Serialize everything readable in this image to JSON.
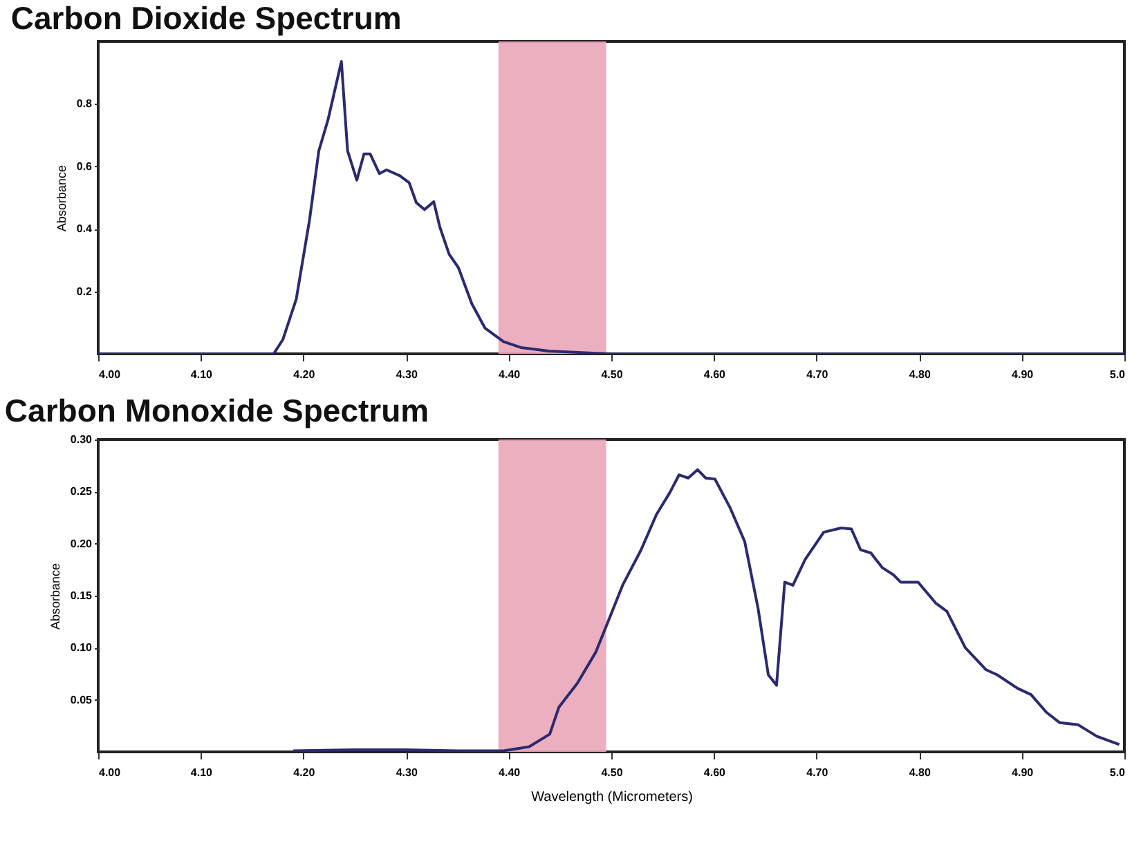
{
  "chart_data": [
    {
      "type": "line",
      "title": "Carbon Dioxide Spectrum",
      "ylabel": "Absorbance",
      "xlim": [
        4.0,
        5.0
      ],
      "ylim": [
        0,
        1.0
      ],
      "xticks": [
        {
          "value": 4.0,
          "label": "4.00"
        },
        {
          "value": 4.1,
          "label": "4.10"
        },
        {
          "value": 4.2,
          "label": "4.20"
        },
        {
          "value": 4.3,
          "label": "4.30"
        },
        {
          "value": 4.4,
          "label": "4.40"
        },
        {
          "value": 4.5,
          "label": "4.50"
        },
        {
          "value": 4.6,
          "label": "4.60"
        },
        {
          "value": 4.7,
          "label": "4.70"
        },
        {
          "value": 4.8,
          "label": "4.80"
        },
        {
          "value": 4.9,
          "label": "4.90"
        },
        {
          "value": 5.0,
          "label": "5.0"
        }
      ],
      "yticks": [
        0.2,
        0.4,
        0.6,
        0.8
      ],
      "bands": [
        {
          "axis": "x",
          "from": 4.39,
          "to": 4.495,
          "label": null,
          "color": "#eaa6b8"
        }
      ],
      "series": [
        {
          "color": "#2c2a6e",
          "x": [
            4.0,
            4.171,
            4.18,
            4.193,
            4.206,
            4.215,
            4.224,
            4.237,
            4.243,
            4.252,
            4.259,
            4.265,
            4.274,
            4.281,
            4.294,
            4.303,
            4.31,
            4.318,
            4.327,
            4.333,
            4.342,
            4.351,
            4.364,
            4.377,
            4.395,
            4.412,
            4.439,
            4.478,
            4.5,
            5.0
          ],
          "values": [
            0,
            0,
            0.046,
            0.175,
            0.43,
            0.65,
            0.75,
            0.936,
            0.65,
            0.556,
            0.64,
            0.64,
            0.577,
            0.589,
            0.57,
            0.548,
            0.484,
            0.462,
            0.487,
            0.405,
            0.319,
            0.276,
            0.161,
            0.082,
            0.039,
            0.02,
            0.009,
            0.003,
            0,
            0
          ]
        }
      ]
    },
    {
      "type": "line",
      "title": "Carbon Monoxide Spectrum",
      "xlabel": "Wavelength (Micrometers)",
      "ylabel": "Absorbance",
      "xlim": [
        4.0,
        5.0
      ],
      "ylim": [
        0,
        0.3
      ],
      "xticks": [
        {
          "value": 4.0,
          "label": "4.00"
        },
        {
          "value": 4.1,
          "label": "4.10"
        },
        {
          "value": 4.2,
          "label": "4.20"
        },
        {
          "value": 4.3,
          "label": "4.30"
        },
        {
          "value": 4.4,
          "label": "4.40"
        },
        {
          "value": 4.5,
          "label": "4.50"
        },
        {
          "value": 4.6,
          "label": "4.60"
        },
        {
          "value": 4.7,
          "label": "4.70"
        },
        {
          "value": 4.8,
          "label": "4.80"
        },
        {
          "value": 4.9,
          "label": "4.90"
        },
        {
          "value": 5.0,
          "label": "5.0"
        }
      ],
      "yticks": [
        {
          "value": 0.05,
          "label": "0.05"
        },
        {
          "value": 0.1,
          "label": "0.10"
        },
        {
          "value": 0.15,
          "label": "0.15"
        },
        {
          "value": 0.2,
          "label": "0.20"
        },
        {
          "value": 0.25,
          "label": "0.25"
        },
        {
          "value": 0.3,
          "label": "0.30"
        }
      ],
      "bands": [
        {
          "axis": "x",
          "from": 4.39,
          "to": 4.495,
          "label": null,
          "color": "#eaa6b8"
        }
      ],
      "series": [
        {
          "color": "#2c2a6e",
          "x": [
            4.19,
            4.25,
            4.3,
            4.35,
            4.395,
            4.42,
            4.44,
            4.449,
            4.467,
            4.485,
            4.498,
            4.511,
            4.529,
            4.544,
            4.557,
            4.566,
            4.575,
            4.584,
            4.592,
            4.601,
            4.616,
            4.63,
            4.643,
            4.653,
            4.661,
            4.669,
            4.677,
            4.689,
            4.707,
            4.724,
            4.734,
            4.743,
            4.753,
            4.764,
            4.775,
            4.782,
            4.799,
            4.816,
            4.827,
            4.845,
            4.865,
            4.876,
            4.896,
            4.909,
            4.924,
            4.937,
            4.955,
            4.973,
            4.995
          ],
          "values": [
            0.001,
            0.002,
            0.002,
            0.001,
            0.001,
            0.005,
            0.017,
            0.043,
            0.066,
            0.096,
            0.128,
            0.16,
            0.194,
            0.228,
            0.249,
            0.266,
            0.263,
            0.271,
            0.263,
            0.262,
            0.234,
            0.202,
            0.138,
            0.074,
            0.064,
            0.163,
            0.16,
            0.185,
            0.211,
            0.215,
            0.214,
            0.194,
            0.191,
            0.177,
            0.17,
            0.163,
            0.163,
            0.143,
            0.135,
            0.1,
            0.079,
            0.074,
            0.061,
            0.055,
            0.038,
            0.028,
            0.026,
            0.015,
            0.007
          ]
        }
      ]
    }
  ]
}
